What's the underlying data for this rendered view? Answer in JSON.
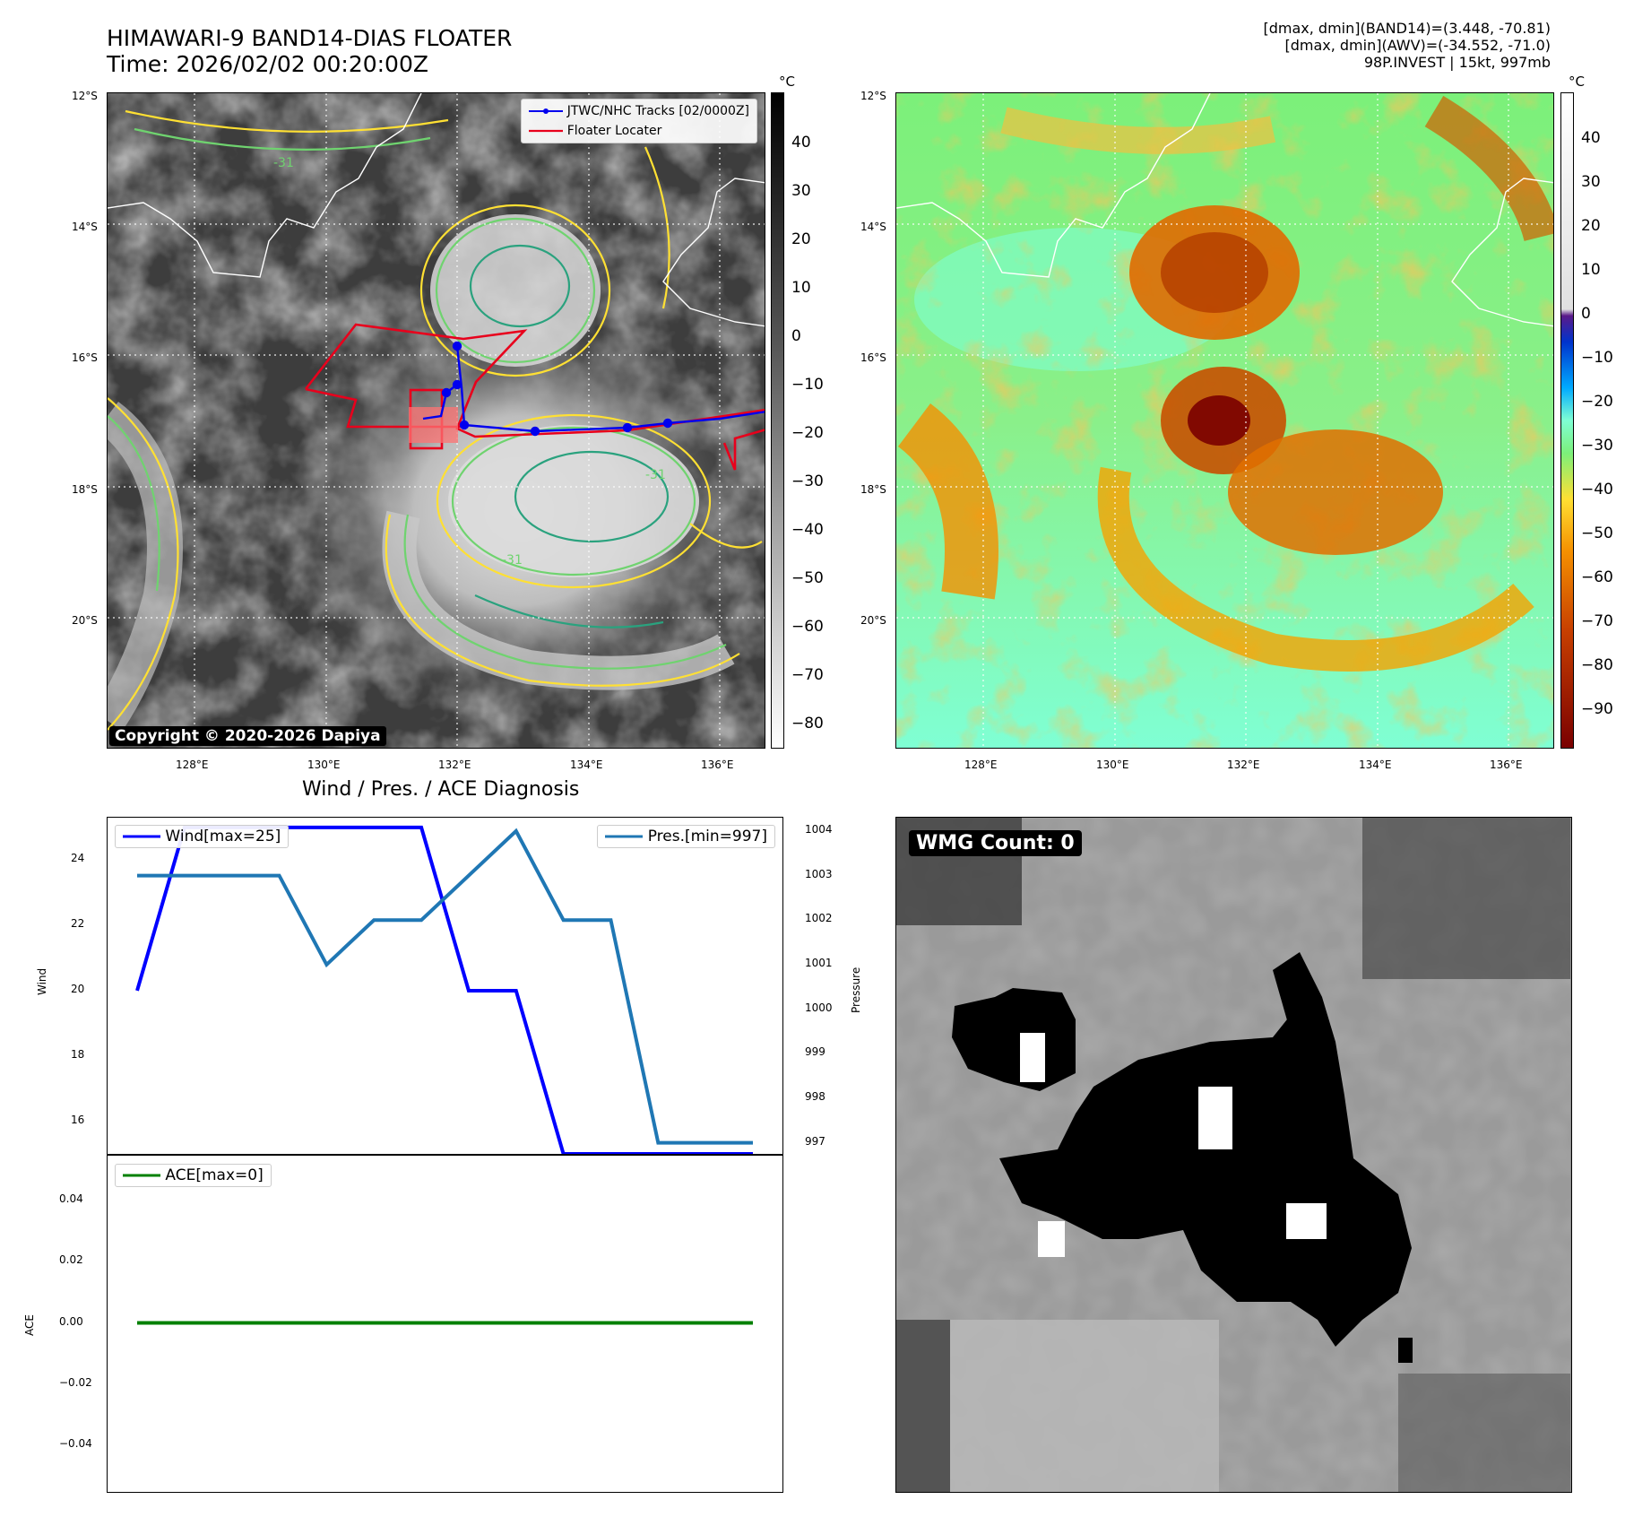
{
  "header": {
    "title_line1": "HIMAWARI-9 BAND14-DIAS FLOATER",
    "title_line2": "Time: 2026/02/02 00:20:00Z",
    "stats_line1": "[dmax, dmin](BAND14)=(3.448, -70.81)",
    "stats_line2": "[dmax, dmin](AWV)=(-34.552, -71.0)",
    "stats_line3": "98P.INVEST | 15kt, 997mb"
  },
  "maps": {
    "lat_labels": [
      "12°S",
      "14°S",
      "16°S",
      "18°S",
      "20°S"
    ],
    "lon_labels": [
      "128°E",
      "130°E",
      "132°E",
      "134°E",
      "136°E"
    ],
    "copyright": "Copyright © 2020-2026 Dapiya",
    "legend_track": "JTWC/NHC Tracks [02/0000Z]",
    "legend_locater": "Floater Locater",
    "contour_label": "-31"
  },
  "colorbar_left": {
    "unit": "°C",
    "ticks": [
      "40",
      "30",
      "20",
      "10",
      "0",
      "−10",
      "−20",
      "−30",
      "−40",
      "−50",
      "−60",
      "−70",
      "−80"
    ]
  },
  "colorbar_right": {
    "unit": "°C",
    "ticks": [
      "40",
      "30",
      "20",
      "10",
      "0",
      "−10",
      "−20",
      "−30",
      "−40",
      "−50",
      "−60",
      "−70",
      "−80",
      "−90"
    ]
  },
  "diagnosis": {
    "title": "Wind / Pres. / ACE Diagnosis",
    "wind_ylabel": "Wind",
    "pres_ylabel": "Pressure",
    "ace_ylabel": "ACE",
    "legend_wind": "Wind[max=25]",
    "legend_pres": "Pres.[min=997]",
    "legend_ace": "ACE[max=0]"
  },
  "wmg": {
    "label": "WMG Count: 0"
  },
  "chart_data": [
    {
      "type": "line",
      "title": "Wind / Pres. / ACE Diagnosis",
      "x": [
        0,
        1,
        2,
        3,
        4,
        5,
        6,
        7,
        8,
        9,
        10,
        11,
        12,
        13
      ],
      "series": [
        {
          "name": "Wind[max=25]",
          "axis": "left",
          "color": "#0000ff",
          "values": [
            20,
            25,
            25,
            25,
            25,
            25,
            25,
            20,
            20,
            15,
            15,
            15,
            15,
            15
          ]
        },
        {
          "name": "Pres.[min=997]",
          "axis": "right",
          "color": "#1f77b4",
          "values": [
            1003,
            1003,
            1003,
            1003,
            1001,
            1002,
            1002,
            1003,
            1004,
            1002,
            1002,
            997,
            997,
            997
          ]
        }
      ],
      "ylabel": "Wind",
      "ylabel_right": "Pressure",
      "ylim": [
        15,
        25.3
      ],
      "ylim_right": [
        996.75,
        1004.3
      ],
      "yticks": [
        "24",
        "22",
        "20",
        "18",
        "16"
      ],
      "yticks_right": [
        "1004",
        "1003",
        "1002",
        "1001",
        "1000",
        "999",
        "998",
        "997"
      ]
    },
    {
      "type": "line",
      "x": [
        0,
        13
      ],
      "series": [
        {
          "name": "ACE[max=0]",
          "color": "#008000",
          "values": [
            0,
            0
          ]
        }
      ],
      "ylabel": "ACE",
      "ylim": [
        -0.055,
        0.055
      ],
      "yticks": [
        "0.04",
        "0.02",
        "0.00",
        "−0.02",
        "−0.04"
      ]
    }
  ]
}
